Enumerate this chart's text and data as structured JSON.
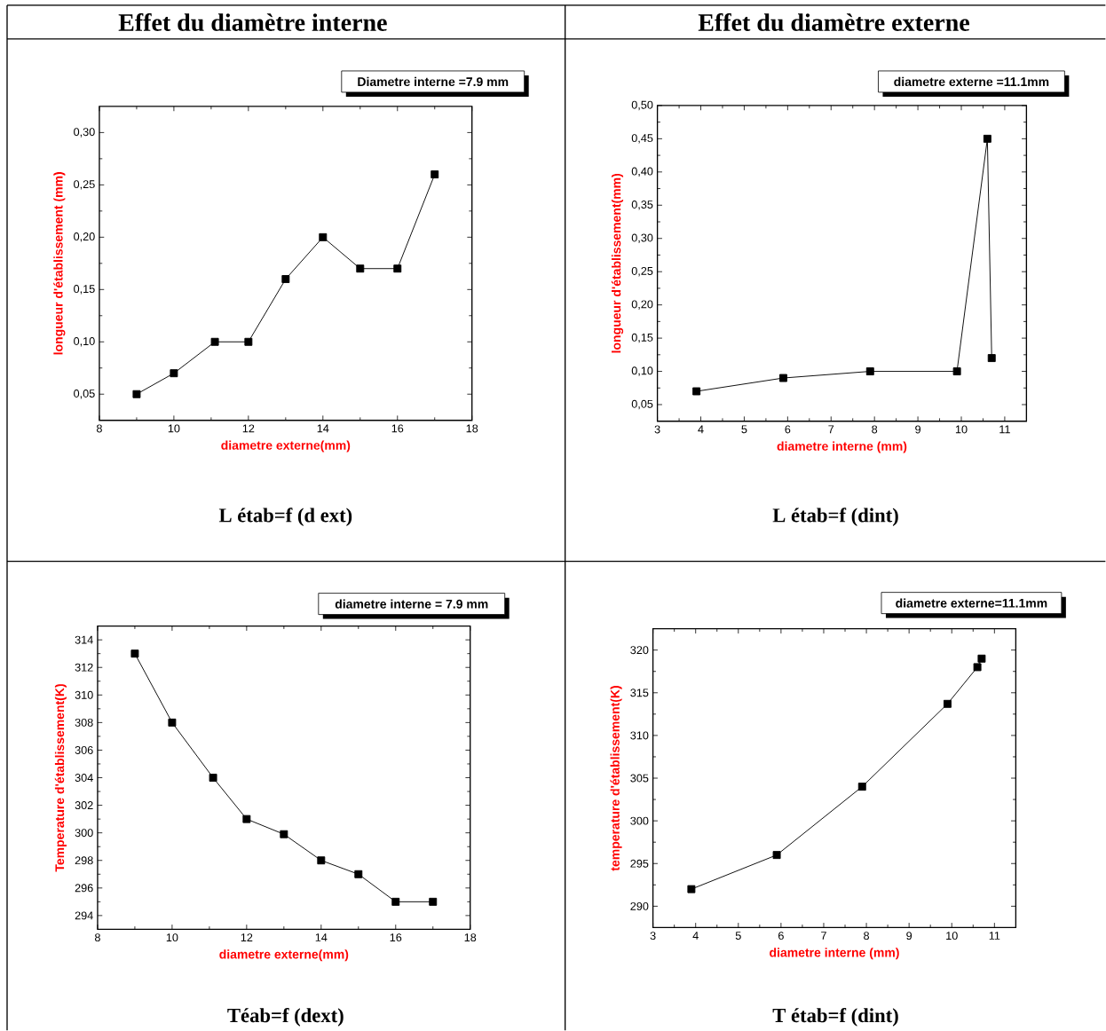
{
  "chart_data": [
    {
      "type": "line",
      "title": "Effet du diamètre interne",
      "xlabel": "diametre externe(mm)",
      "ylabel": "longueur d'établissement (mm)",
      "annotations": [
        "Diametre interne =7.9 mm",
        "L étab=f (d ext)"
      ],
      "marker": "square",
      "line_style": "solid",
      "x": [
        9,
        10,
        11.1,
        12,
        13,
        14,
        15,
        16,
        17
      ],
      "series": [
        {
          "color": "#000000",
          "values": [
            0.05,
            0.07,
            0.1,
            0.1,
            0.16,
            0.2,
            0.17,
            0.17,
            0.26
          ]
        }
      ],
      "xlim": [
        8,
        18
      ],
      "xticks": [
        8,
        10,
        12,
        14,
        16,
        18
      ],
      "ylim": [
        0.025,
        0.325
      ],
      "yticks": [
        {
          "value": 0.05,
          "label": "0,05"
        },
        {
          "value": 0.1,
          "label": "0,10"
        },
        {
          "value": 0.15,
          "label": "0,15"
        },
        {
          "value": 0.2,
          "label": "0,20"
        },
        {
          "value": 0.25,
          "label": "0,25"
        },
        {
          "value": 0.3,
          "label": "0,30"
        }
      ]
    },
    {
      "type": "line",
      "title": "Effet du diamètre externe",
      "xlabel": "diametre interne (mm)",
      "ylabel": "longueur d'établissement(mm)",
      "annotations": [
        "diametre externe =11.1mm",
        "L étab=f (dint)"
      ],
      "marker": "square",
      "line_style": "solid",
      "x": [
        3.9,
        5.9,
        7.9,
        9.9,
        10.6,
        10.7
      ],
      "series": [
        {
          "color": "#000000",
          "values": [
            0.07,
            0.09,
            0.1,
            0.1,
            0.45,
            0.12
          ]
        }
      ],
      "xlim": [
        3,
        11.5
      ],
      "xticks": [
        3,
        4,
        5,
        6,
        7,
        8,
        9,
        10,
        11
      ],
      "ylim": [
        0.025,
        0.5
      ],
      "yticks": [
        {
          "value": 0.05,
          "label": "0,05"
        },
        {
          "value": 0.1,
          "label": "0,10"
        },
        {
          "value": 0.15,
          "label": "0,15"
        },
        {
          "value": 0.2,
          "label": "0,20"
        },
        {
          "value": 0.25,
          "label": "0,25"
        },
        {
          "value": 0.3,
          "label": "0,30"
        },
        {
          "value": 0.35,
          "label": "0,35"
        },
        {
          "value": 0.4,
          "label": "0,40"
        },
        {
          "value": 0.45,
          "label": "0,45"
        },
        {
          "value": 0.5,
          "label": "0,50"
        }
      ]
    },
    {
      "type": "line",
      "xlabel": "**diametre externe**(mm)",
      "ylabel": "Temperature d'établissement(K)",
      "annotations": [
        "diametre interne = 7.9 mm",
        "Téab=f (dext)"
      ],
      "marker": "square",
      "line_style": "solid",
      "x": [
        9,
        10,
        11.1,
        12,
        13,
        14,
        15,
        16,
        17
      ],
      "series": [
        {
          "color": "#000000",
          "values": [
            313,
            308,
            304,
            301,
            299.9,
            298,
            297,
            295,
            295
          ]
        }
      ],
      "xlim": [
        8,
        18
      ],
      "xticks": [
        8,
        10,
        12,
        14,
        16,
        18
      ],
      "ylim": [
        293,
        315
      ],
      "yticks": [
        294,
        296,
        298,
        300,
        302,
        304,
        306,
        308,
        310,
        312,
        314
      ]
    },
    {
      "type": "line",
      "xlabel": "diametre interne (mm)",
      "ylabel": "temperature d'établissement(K)",
      "annotations": [
        "diametre externe=11.1mm",
        "T étab=f (dint)"
      ],
      "marker": "square",
      "line_style": "solid",
      "x": [
        3.9,
        5.9,
        7.9,
        9.9,
        10.6,
        10.7
      ],
      "series": [
        {
          "color": "#000000",
          "values": [
            292,
            296,
            304,
            313.7,
            318,
            319
          ]
        }
      ],
      "xlim": [
        3,
        11.5
      ],
      "xticks": [
        3,
        4,
        5,
        6,
        7,
        8,
        9,
        10,
        11
      ],
      "ylim": [
        287.5,
        322.5
      ],
      "yticks": [
        290,
        295,
        300,
        305,
        310,
        315,
        320
      ]
    }
  ]
}
